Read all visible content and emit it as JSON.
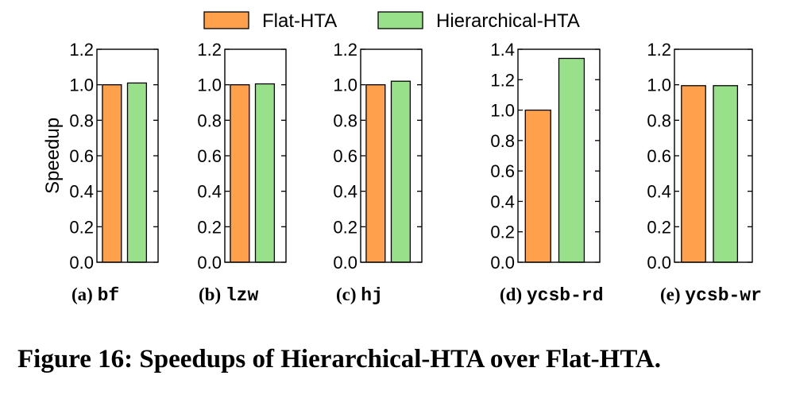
{
  "legend": {
    "position": "top-center",
    "items": [
      {
        "label": "Flat-HTA",
        "color": "#FFA04D"
      },
      {
        "label": "Hierarchical-HTA",
        "color": "#99E08A"
      }
    ]
  },
  "caption": {
    "text": "Figure 16: Speedups of Hierarchical-HTA over Flat-HTA."
  },
  "chart_data": [
    {
      "type": "bar",
      "panel": "(a) bf",
      "panel_prefix": "(a)",
      "panel_name": "bf",
      "ylabel": "Speedup",
      "ylim": [
        0,
        1.2
      ],
      "yticks": [
        "0.0",
        "0.2",
        "0.4",
        "0.6",
        "0.8",
        "1.0",
        "1.2"
      ],
      "series": [
        {
          "name": "Flat-HTA",
          "values": [
            1.0
          ]
        },
        {
          "name": "Hierarchical-HTA",
          "values": [
            1.01
          ]
        }
      ]
    },
    {
      "type": "bar",
      "panel": "(b) lzw",
      "panel_prefix": "(b)",
      "panel_name": "lzw",
      "ylabel": "",
      "ylim": [
        0,
        1.2
      ],
      "yticks": [
        "0.0",
        "0.2",
        "0.4",
        "0.6",
        "0.8",
        "1.0",
        "1.2"
      ],
      "series": [
        {
          "name": "Flat-HTA",
          "values": [
            1.0
          ]
        },
        {
          "name": "Hierarchical-HTA",
          "values": [
            1.005
          ]
        }
      ]
    },
    {
      "type": "bar",
      "panel": "(c) hj",
      "panel_prefix": "(c)",
      "panel_name": "hj",
      "ylabel": "",
      "ylim": [
        0,
        1.2
      ],
      "yticks": [
        "0.0",
        "0.2",
        "0.4",
        "0.6",
        "0.8",
        "1.0",
        "1.2"
      ],
      "series": [
        {
          "name": "Flat-HTA",
          "values": [
            1.0
          ]
        },
        {
          "name": "Hierarchical-HTA",
          "values": [
            1.02
          ]
        }
      ]
    },
    {
      "type": "bar",
      "panel": "(d) ycsb-rd",
      "panel_prefix": "(d)",
      "panel_name": "ycsb-rd",
      "ylabel": "",
      "ylim": [
        0,
        1.4
      ],
      "yticks": [
        "0.0",
        "0.2",
        "0.4",
        "0.6",
        "0.8",
        "1.0",
        "1.2",
        "1.4"
      ],
      "series": [
        {
          "name": "Flat-HTA",
          "values": [
            1.0
          ]
        },
        {
          "name": "Hierarchical-HTA",
          "values": [
            1.34
          ]
        }
      ]
    },
    {
      "type": "bar",
      "panel": "(e) ycsb-wr",
      "panel_prefix": "(e)",
      "panel_name": "ycsb-wr",
      "ylabel": "",
      "ylim": [
        0,
        1.2
      ],
      "yticks": [
        "0.0",
        "0.2",
        "0.4",
        "0.6",
        "0.8",
        "1.0",
        "1.2"
      ],
      "series": [
        {
          "name": "Flat-HTA",
          "values": [
            0.995
          ]
        },
        {
          "name": "Hierarchical-HTA",
          "values": [
            0.995
          ]
        }
      ]
    }
  ]
}
